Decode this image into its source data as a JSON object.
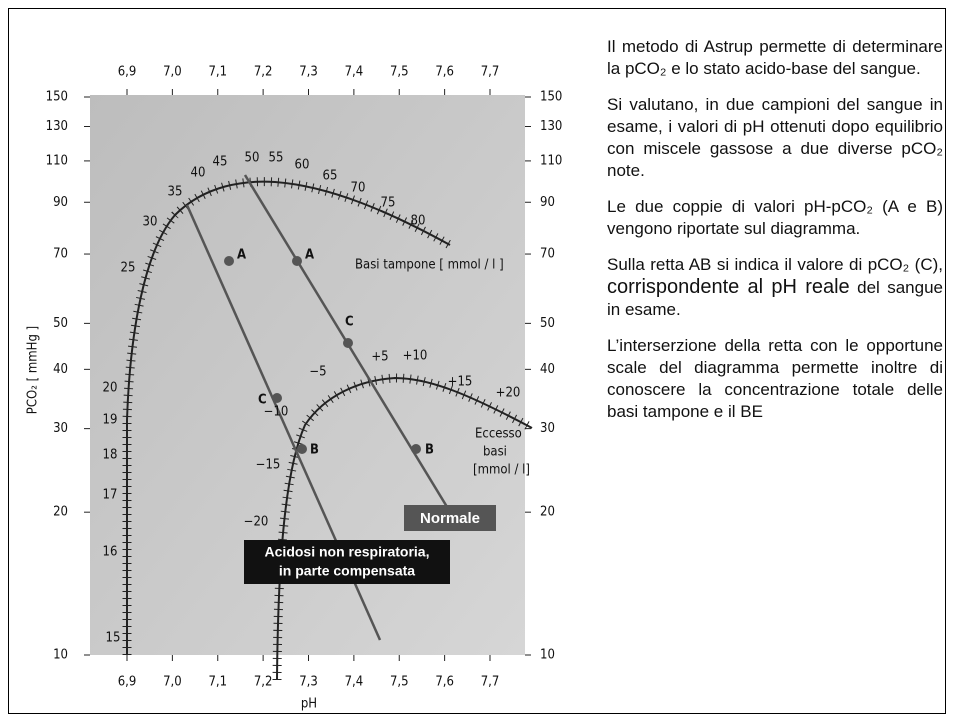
{
  "diagram": {
    "ph_ticks": [
      {
        "value": 6.9,
        "label": "6,9"
      },
      {
        "value": 7.0,
        "label": "7,0"
      },
      {
        "value": 7.1,
        "label": "7,1"
      },
      {
        "value": 7.2,
        "label": "7,2"
      },
      {
        "value": 7.3,
        "label": "7,3"
      },
      {
        "value": 7.4,
        "label": "7,4"
      },
      {
        "value": 7.5,
        "label": "7,5"
      },
      {
        "value": 7.6,
        "label": "7,6"
      },
      {
        "value": 7.7,
        "label": "7,7"
      }
    ],
    "pco2_ticks": [
      150,
      130,
      110,
      90,
      70,
      50,
      40,
      30,
      20,
      10
    ],
    "y_label": "PCO₂ [ mmHg ]",
    "x_label": "pH",
    "buffer_base_label": "Basi tampone [ mmol / l ]",
    "buffer_base_scale": [
      25,
      30,
      35,
      40,
      45,
      50,
      55,
      60,
      65,
      70,
      75,
      80
    ],
    "left_scale": [
      20,
      19,
      18,
      17,
      16,
      15
    ],
    "base_excess_scale": [
      "−20",
      "−15",
      "−10",
      "−5",
      "+5",
      "+10",
      "+15",
      "+20"
    ],
    "base_excess_label": [
      "Eccesso",
      "basi",
      "[mmol / l]"
    ],
    "lines": [
      {
        "points": [
          "A",
          "C",
          "B"
        ],
        "caption": [
          "Acidosi non respiratoria,",
          "in parte compensata"
        ]
      },
      {
        "points": [
          "A",
          "C",
          "B"
        ],
        "caption": [
          "Normale"
        ]
      }
    ]
  },
  "text": {
    "paragraphs": [
      "Il metodo di Astrup permette di determinare la pCO₂ e lo stato acido-base del sangue.",
      "Si valutano, in due campioni del sangue in esame, i valori di pH ottenuti dopo equilibrio con miscele gassose a due diverse pCO₂ note.",
      "Le due coppie di valori pH-pCO₂ (A e B) vengono riportate sul diagramma.",
      {
        "before": "Sulla retta AB si indica il valore di pCO₂ (C), ",
        "emphasis": "corrispondente al pH reale",
        "after": " del sangue in esame."
      },
      "L’interserzione della retta con le opportune scale del diagramma permette inoltre di conoscere la concentrazione totale delle basi tampone e il BE"
    ]
  }
}
